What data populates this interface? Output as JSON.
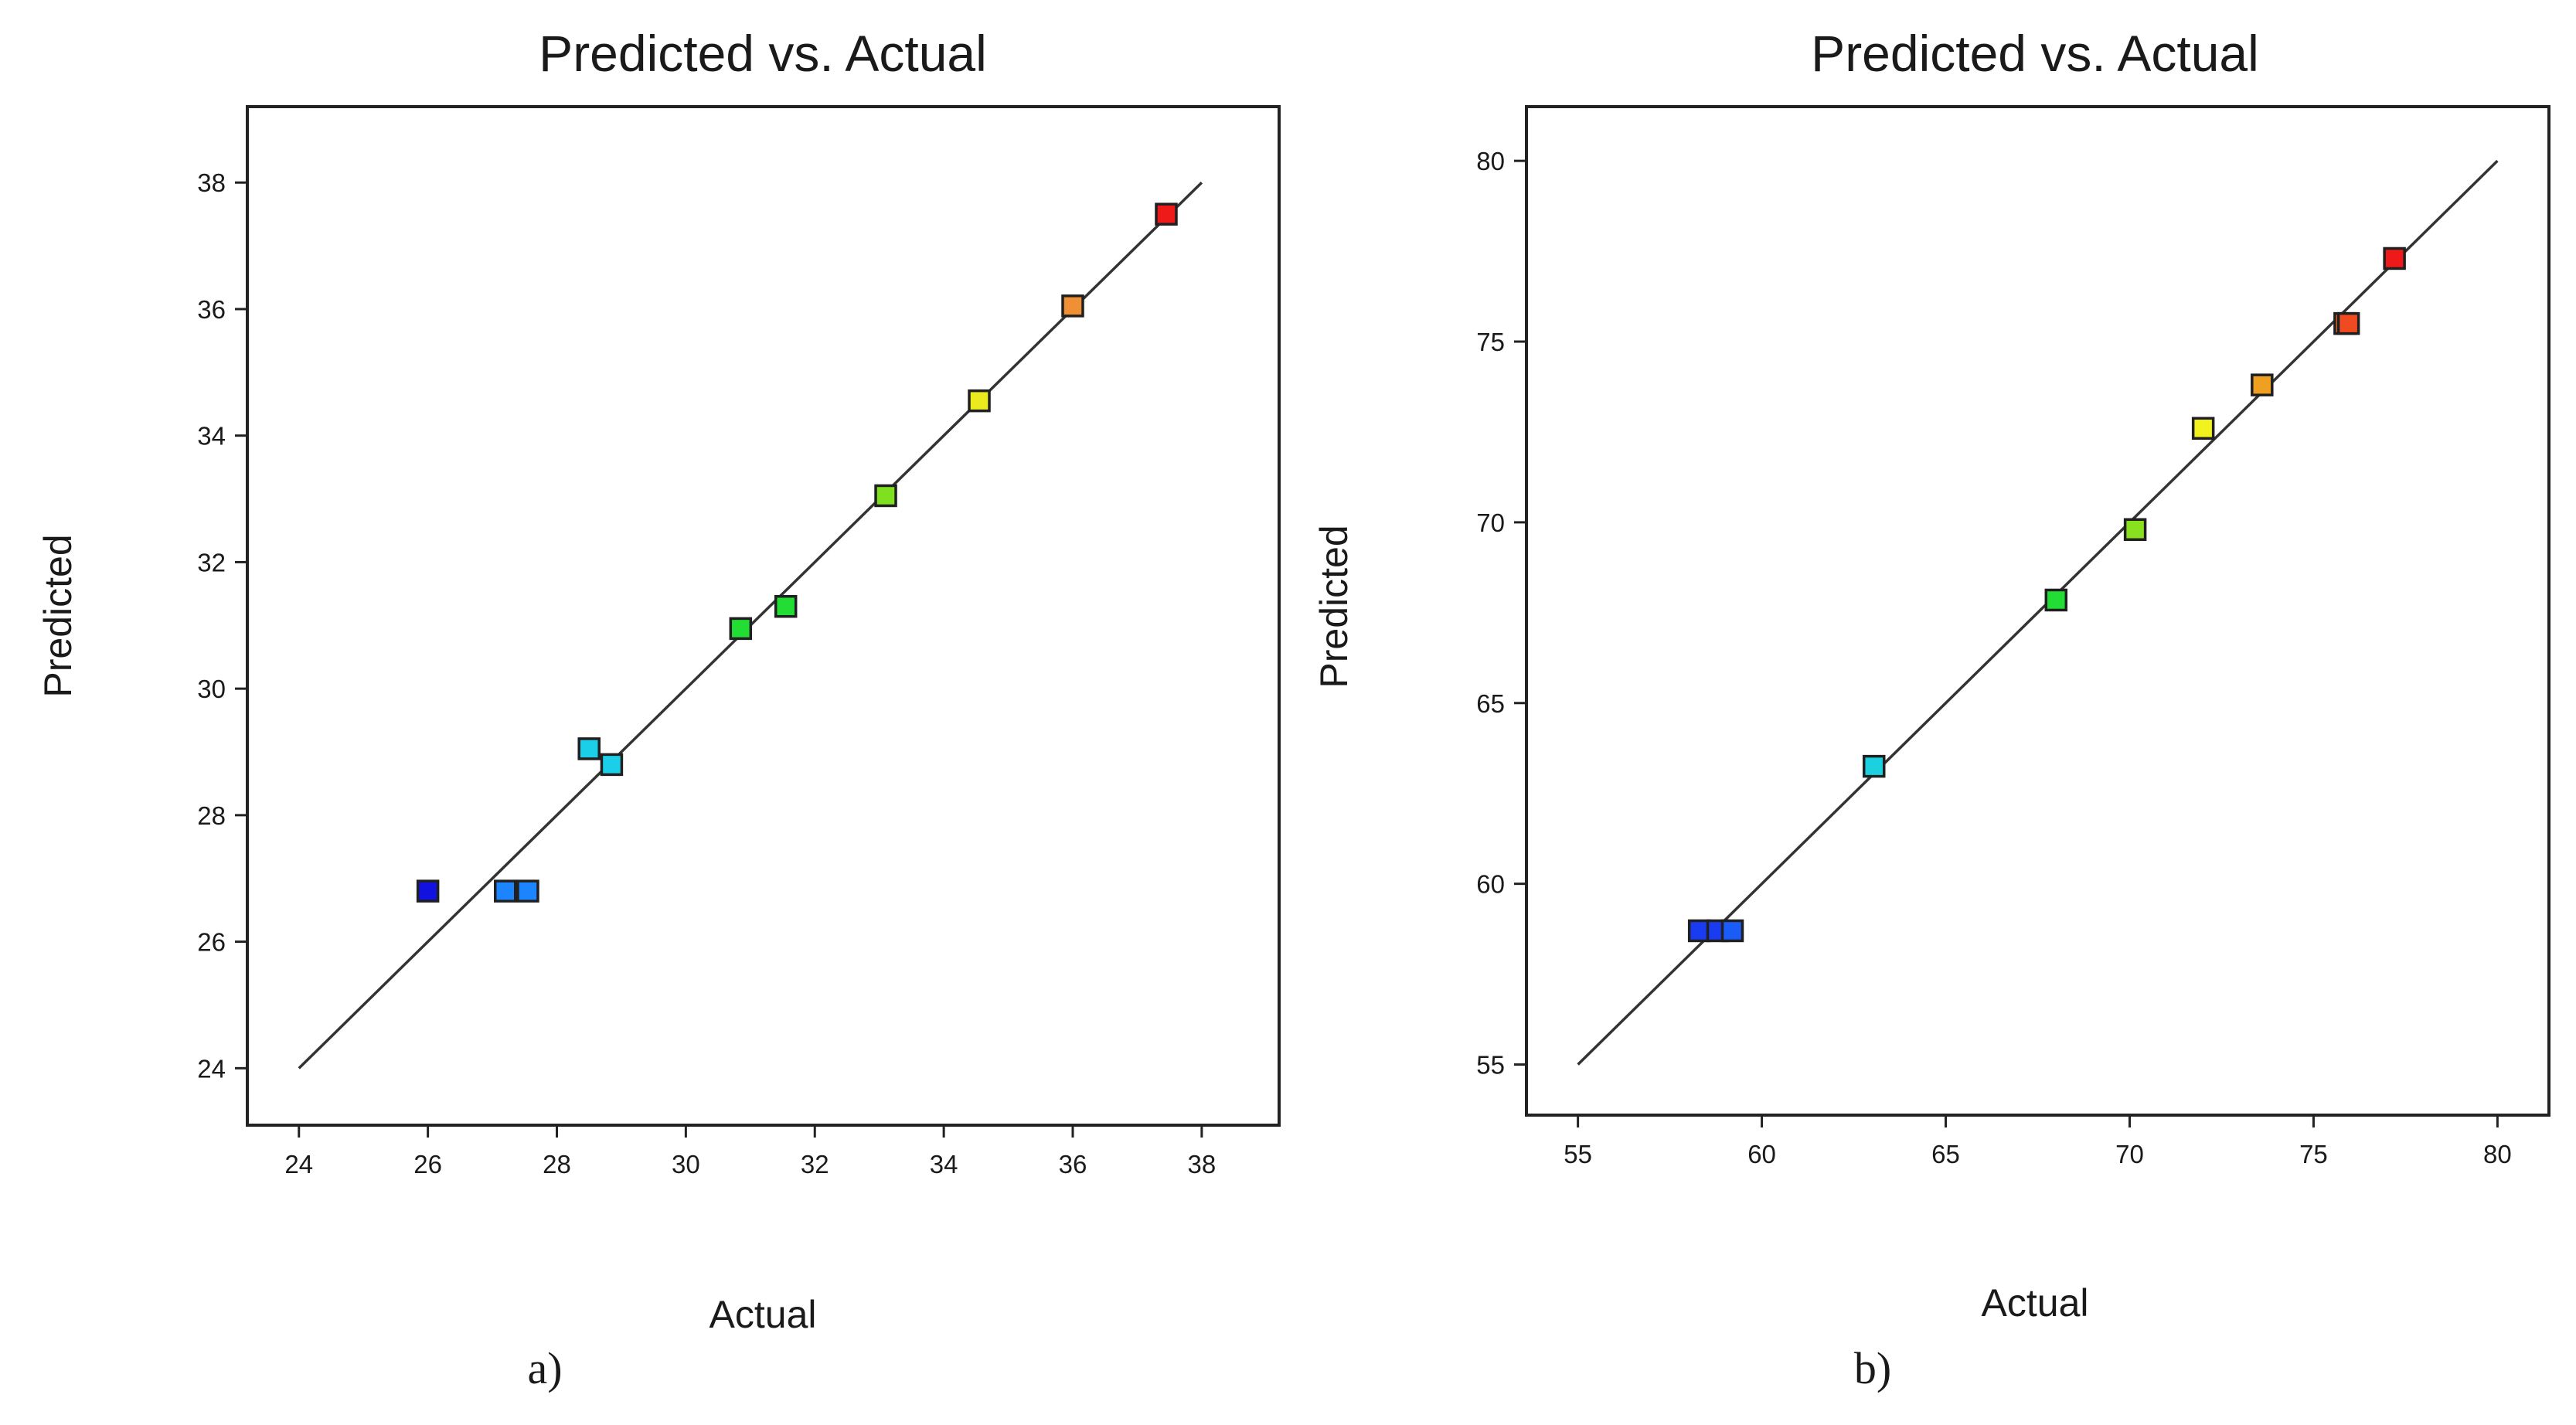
{
  "chart_data": [
    {
      "type": "scatter",
      "panel_label": "a)",
      "title": "Predicted vs. Actual",
      "xlabel": "Actual",
      "ylabel": "Predicted",
      "xlim": [
        23.2,
        39.2
      ],
      "ylim": [
        23.1,
        39.2
      ],
      "xticks": [
        24,
        26,
        28,
        30,
        32,
        34,
        36,
        38
      ],
      "yticks": [
        24,
        26,
        28,
        30,
        32,
        34,
        36,
        38
      ],
      "reference_line": {
        "from": [
          24,
          24
        ],
        "to": [
          38,
          38
        ]
      },
      "grid": false,
      "points": [
        {
          "x": 26.0,
          "y": 26.8,
          "color": "#1212e0"
        },
        {
          "x": 27.2,
          "y": 26.8,
          "color": "#1c84ff"
        },
        {
          "x": 27.55,
          "y": 26.8,
          "color": "#1c84ff"
        },
        {
          "x": 28.5,
          "y": 29.05,
          "color": "#1ccfe8"
        },
        {
          "x": 28.85,
          "y": 28.8,
          "color": "#1ccfe8"
        },
        {
          "x": 30.85,
          "y": 30.95,
          "color": "#22dd33"
        },
        {
          "x": 31.55,
          "y": 31.3,
          "color": "#22dd33"
        },
        {
          "x": 33.1,
          "y": 33.05,
          "color": "#7ee01e"
        },
        {
          "x": 34.55,
          "y": 34.55,
          "color": "#eaea1e"
        },
        {
          "x": 36.0,
          "y": 36.05,
          "color": "#f09035"
        },
        {
          "x": 37.45,
          "y": 37.5,
          "color": "#ee1a1a"
        }
      ]
    },
    {
      "type": "scatter",
      "panel_label": "b)",
      "title": "Predicted vs. Actual",
      "xlabel": "Actual",
      "ylabel": "Predicted",
      "xlim": [
        53.6,
        81.4
      ],
      "ylim": [
        53.6,
        81.5
      ],
      "xticks": [
        55,
        60,
        65,
        70,
        75,
        80
      ],
      "yticks": [
        55,
        60,
        65,
        70,
        75,
        80
      ],
      "reference_line": {
        "from": [
          55,
          55
        ],
        "to": [
          80,
          80
        ]
      },
      "grid": false,
      "points": [
        {
          "x": 58.3,
          "y": 58.7,
          "color": "#1a3cf0"
        },
        {
          "x": 58.8,
          "y": 58.7,
          "color": "#1a3cf0"
        },
        {
          "x": 59.2,
          "y": 58.7,
          "color": "#1a5cf5"
        },
        {
          "x": 63.05,
          "y": 63.25,
          "color": "#1cd0e0"
        },
        {
          "x": 68.0,
          "y": 67.85,
          "color": "#22dd33"
        },
        {
          "x": 70.15,
          "y": 69.8,
          "color": "#88e01e"
        },
        {
          "x": 72.0,
          "y": 72.6,
          "color": "#f2f21e"
        },
        {
          "x": 73.6,
          "y": 73.8,
          "color": "#f0a020"
        },
        {
          "x": 75.85,
          "y": 75.5,
          "color": "#f06420"
        },
        {
          "x": 75.95,
          "y": 75.5,
          "color": "#f04a20"
        },
        {
          "x": 77.2,
          "y": 77.3,
          "color": "#ee1a1a"
        }
      ]
    }
  ]
}
